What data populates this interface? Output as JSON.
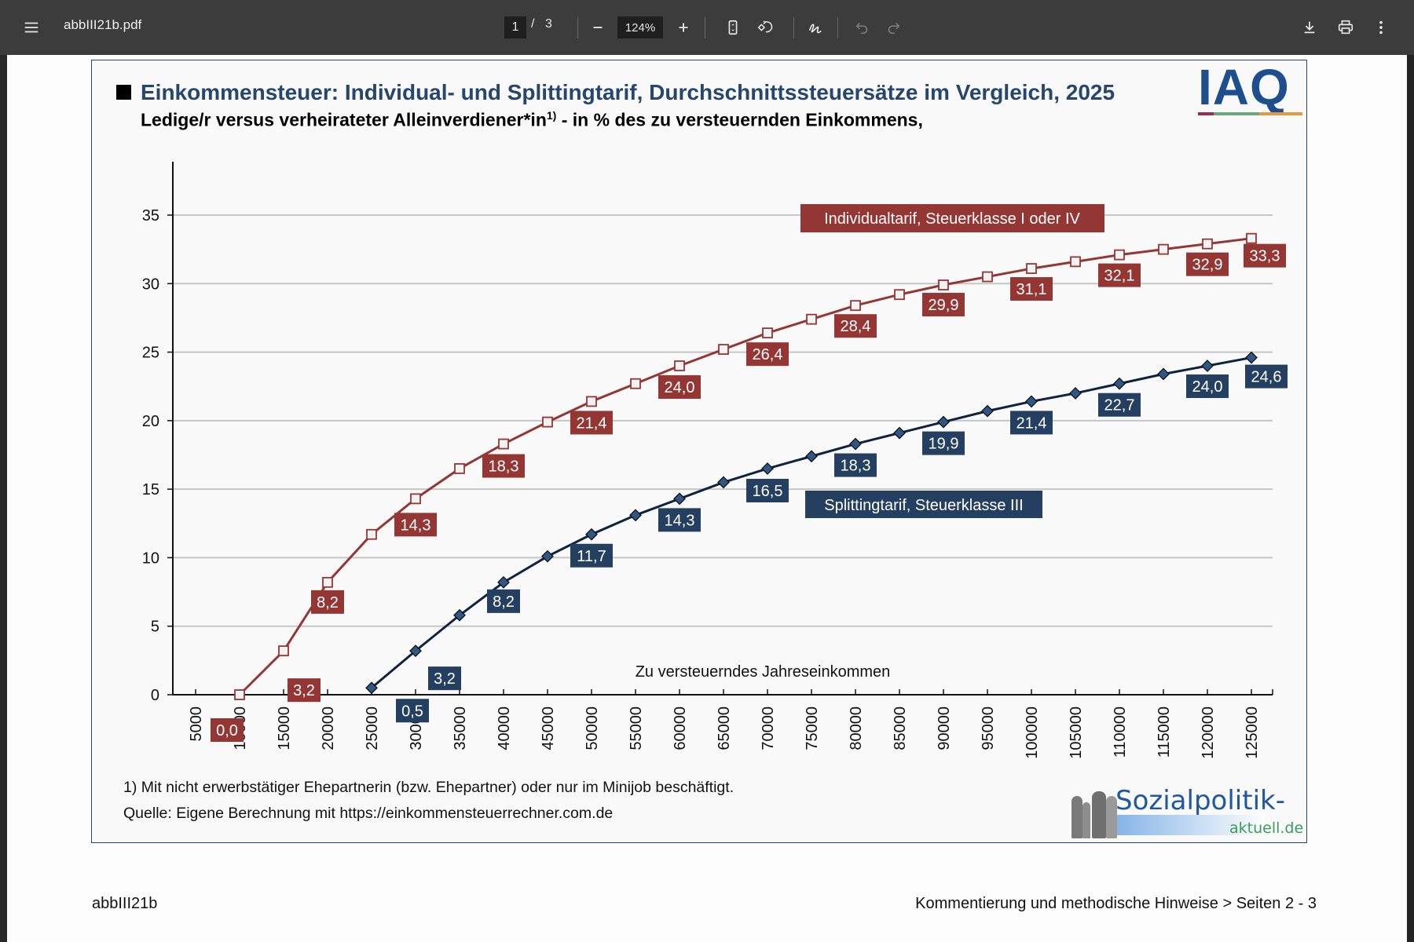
{
  "toolbar": {
    "filename": "abbIII21b.pdf",
    "current_page": "1",
    "page_separator": "/",
    "total_pages": "3",
    "zoom_level": "124%",
    "icons": [
      "menu-icon",
      "zoom-out-icon",
      "zoom-in-icon",
      "fit-page-icon",
      "rotate-icon",
      "draw-icon",
      "undo-icon",
      "redo-icon",
      "download-icon",
      "print-icon",
      "more-icon"
    ]
  },
  "document": {
    "title": "Einkommensteuer: Individual- und Splittingtarif, Durchschnittssteuersätze im Vergleich, 2025",
    "subtitle_pre": "Ledige/r versus verheirateter Alleinverdiener*in",
    "subtitle_sup": "1)",
    "subtitle_post": " - in % des zu versteuernden Einkommens,",
    "logo_iaq": "IAQ",
    "logo_iaq_colors": [
      "#9b2c4a",
      "#6aa882",
      "#e19b3c"
    ],
    "footnote_1": "1) Mit nicht erwerbstätiger Ehepartnerin (bzw. Ehepartner) oder nur im Minijob beschäftigt.",
    "source": "Quelle: Eigene Berechnung mit https://einkommensteuerrechner.com.de",
    "logo_sozialpolitik_main": "Sozialpolitik-",
    "logo_sozialpolitik_sub": "aktuell.de",
    "page_footer_left": "abbIII21b",
    "page_footer_right": "Kommentierung und methodische Hinweise > Seiten 2 - 3"
  },
  "chart_data": {
    "type": "line",
    "title": "Einkommensteuer: Individual- und Splittingtarif, Durchschnittssteuersätze im Vergleich, 2025",
    "xlabel": "Zu versteuerndes Jahreseinkommen",
    "ylabel": "",
    "ylim": [
      0,
      38
    ],
    "yticks": [
      0,
      5,
      10,
      15,
      20,
      25,
      30,
      35
    ],
    "grid": true,
    "x": [
      5000,
      10000,
      15000,
      20000,
      25000,
      30000,
      35000,
      40000,
      45000,
      50000,
      55000,
      60000,
      65000,
      70000,
      75000,
      80000,
      85000,
      90000,
      95000,
      100000,
      105000,
      110000,
      115000,
      120000,
      125000
    ],
    "xtick_labels": [
      "5000",
      "10000",
      "15000",
      "20000",
      "25000",
      "30000",
      "35000",
      "40000",
      "45000",
      "50000",
      "55000",
      "60000",
      "65000",
      "70000",
      "75000",
      "80000",
      "85000",
      "90000",
      "95000",
      "100000",
      "105000",
      "110000",
      "115000",
      "120000",
      "125000"
    ],
    "series": [
      {
        "name": "Individualtarif, Steuerklasse I oder IV",
        "color": "#943634",
        "marker": "square",
        "x": [
          10000,
          15000,
          20000,
          25000,
          30000,
          35000,
          40000,
          45000,
          50000,
          55000,
          60000,
          65000,
          70000,
          75000,
          80000,
          85000,
          90000,
          95000,
          100000,
          105000,
          110000,
          115000,
          120000,
          125000
        ],
        "values": [
          0.0,
          3.2,
          8.2,
          11.7,
          14.3,
          16.5,
          18.3,
          19.9,
          21.4,
          22.7,
          24.0,
          25.2,
          26.4,
          27.4,
          28.4,
          29.2,
          29.9,
          30.5,
          31.1,
          31.6,
          32.1,
          32.5,
          32.9,
          33.3
        ],
        "labels": [
          {
            "x": 10000,
            "text": "0,0"
          },
          {
            "x": 15000,
            "text": "3,2"
          },
          {
            "x": 20000,
            "text": "8,2"
          },
          {
            "x": 30000,
            "text": "14,3"
          },
          {
            "x": 40000,
            "text": "18,3"
          },
          {
            "x": 50000,
            "text": "21,4"
          },
          {
            "x": 60000,
            "text": "24,0"
          },
          {
            "x": 70000,
            "text": "26,4"
          },
          {
            "x": 80000,
            "text": "28,4"
          },
          {
            "x": 90000,
            "text": "29,9"
          },
          {
            "x": 100000,
            "text": "31,1"
          },
          {
            "x": 110000,
            "text": "32,1"
          },
          {
            "x": 120000,
            "text": "32,9"
          },
          {
            "x": 125000,
            "text": "33,3"
          }
        ]
      },
      {
        "name": "Splittingtarif, Steuerklasse III",
        "color": "#1f3b5c",
        "marker": "diamond",
        "x": [
          25000,
          30000,
          35000,
          40000,
          45000,
          50000,
          55000,
          60000,
          65000,
          70000,
          75000,
          80000,
          85000,
          90000,
          95000,
          100000,
          105000,
          110000,
          115000,
          120000,
          125000
        ],
        "values": [
          0.5,
          3.2,
          5.8,
          8.2,
          10.1,
          11.7,
          13.1,
          14.3,
          15.5,
          16.5,
          17.4,
          18.3,
          19.1,
          19.9,
          20.7,
          21.4,
          22.0,
          22.7,
          23.4,
          24.0,
          24.6
        ],
        "labels": [
          {
            "x": 25000,
            "text": "0,5"
          },
          {
            "x": 30000,
            "text": "3,2"
          },
          {
            "x": 40000,
            "text": "8,2"
          },
          {
            "x": 50000,
            "text": "11,7"
          },
          {
            "x": 60000,
            "text": "14,3"
          },
          {
            "x": 70000,
            "text": "16,5"
          },
          {
            "x": 80000,
            "text": "18,3"
          },
          {
            "x": 90000,
            "text": "19,9"
          },
          {
            "x": 100000,
            "text": "21,4"
          },
          {
            "x": 110000,
            "text": "22,7"
          },
          {
            "x": 120000,
            "text": "24,0"
          },
          {
            "x": 125000,
            "text": "24,6"
          }
        ]
      }
    ],
    "legend": [
      {
        "text": "Individualtarif, Steuerklasse I oder IV",
        "color": "#943634",
        "placement": "top-right"
      },
      {
        "text": "Splittingtarif, Steuerklasse III",
        "color": "#243f60",
        "placement": "center"
      }
    ]
  }
}
